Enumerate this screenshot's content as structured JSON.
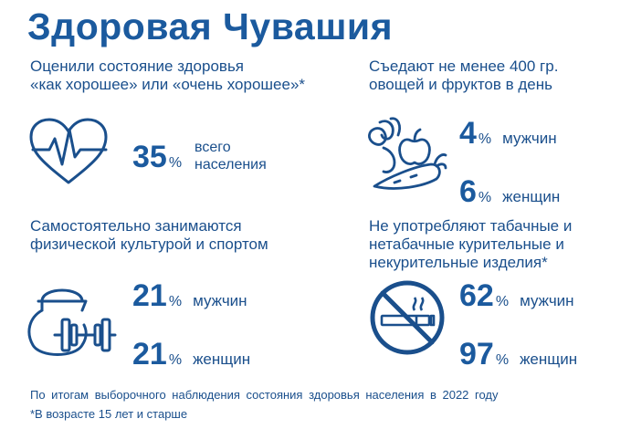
{
  "title": "Здоровая Чувашия",
  "colors": {
    "primary": "#1b5a9e",
    "icon_stroke": "#1a4f8c"
  },
  "health": {
    "header_line1": "Оценили состояние здоровья",
    "header_line2": "«как хорошее» или «очень хорошее»*",
    "icon": "heart-pulse-icon",
    "value": "35",
    "unit": "%",
    "label_line1": "всего",
    "label_line2": "населения"
  },
  "vegetables": {
    "header_line1": "Съедают не менее 400 гр.",
    "header_line2": "овощей и фруктов в день",
    "icon": "vegetables-icon",
    "men_value": "4",
    "men_unit": "%",
    "men_label": "мужчин",
    "women_value": "6",
    "women_unit": "%",
    "women_label": "женщин"
  },
  "sport": {
    "header_line1": "Самостоятельно занимаются",
    "header_line2": "физической культурой и спортом",
    "icon": "kettlebell-dumbbell-icon",
    "men_value": "21",
    "men_unit": "%",
    "men_label": "мужчин",
    "women_value": "21",
    "women_unit": "%",
    "women_label": "женщин"
  },
  "smoking": {
    "header_line1": "Не употребляют табачные и",
    "header_line2": "нетабачные курительные и",
    "header_line3": "некурительные изделия*",
    "icon": "no-smoking-icon",
    "men_value": "62",
    "men_unit": "%",
    "men_label": "мужчин",
    "women_value": "97",
    "women_unit": "%",
    "women_label": "женщин"
  },
  "footer": {
    "line1": "По итогам выборочного наблюдения состояния здоровья населения в 2022 году",
    "line2": "*В возрасте 15 лет и старше"
  }
}
